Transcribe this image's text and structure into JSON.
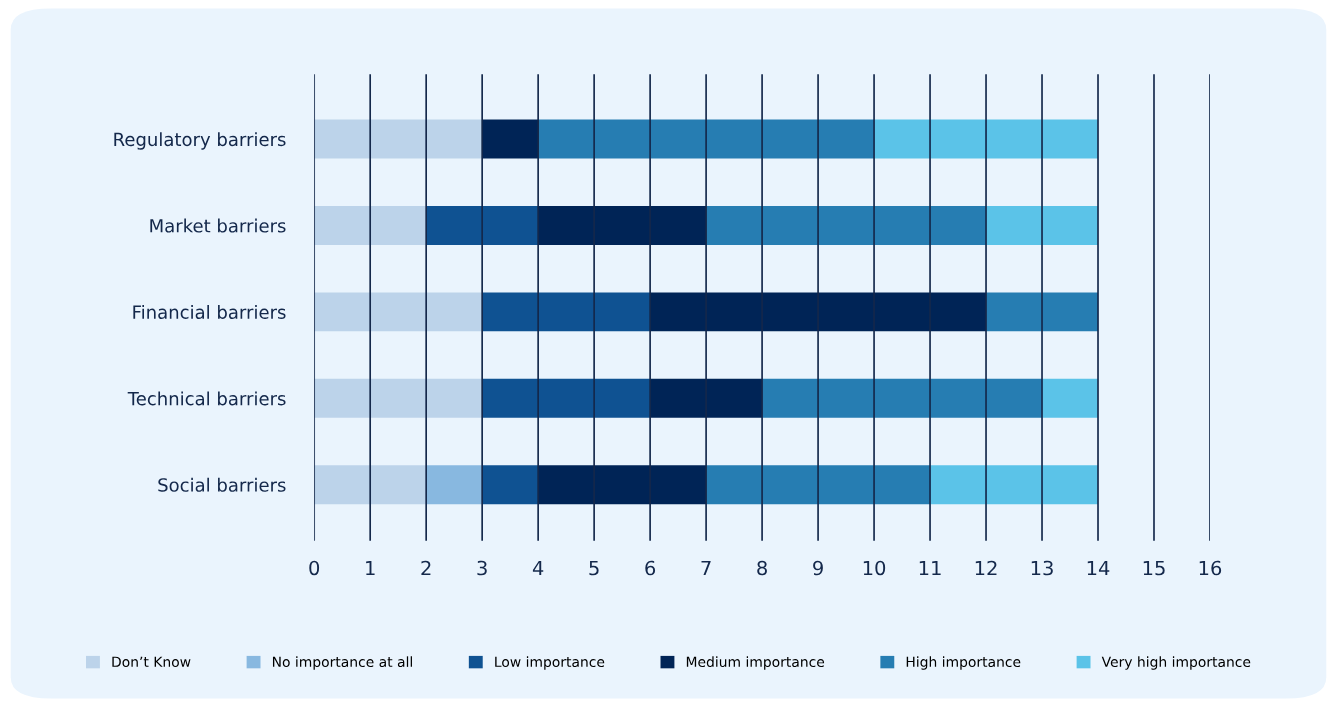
{
  "chart_data": {
    "type": "bar",
    "orientation": "horizontal",
    "stacked": true,
    "categories": [
      "Regulatory barriers",
      "Market barriers",
      "Financial barriers",
      "Technical barriers",
      "Social barriers"
    ],
    "series": [
      {
        "name": "Don’t Know",
        "color": "#bcd3ea",
        "values": [
          3,
          2,
          3,
          3,
          2
        ]
      },
      {
        "name": "No importance at all",
        "color": "#88b8e0",
        "values": [
          0,
          0,
          0,
          0,
          1
        ]
      },
      {
        "name": "Low importance",
        "color": "#0f5292",
        "values": [
          0,
          2,
          3,
          3,
          1
        ]
      },
      {
        "name": "Medium importance",
        "color": "#002456",
        "values": [
          1,
          3,
          6,
          2,
          3
        ]
      },
      {
        "name": "High importance",
        "color": "#267db2",
        "values": [
          6,
          5,
          2,
          5,
          4
        ]
      },
      {
        "name": "Very high importance",
        "color": "#5bc3e8",
        "values": [
          4,
          2,
          0,
          1,
          3
        ]
      }
    ],
    "xlim": [
      0,
      16
    ],
    "xticks": [
      0,
      1,
      2,
      3,
      4,
      5,
      6,
      7,
      8,
      9,
      10,
      11,
      12,
      13,
      14,
      15,
      16
    ],
    "grid": "x",
    "legend": "bottom"
  }
}
